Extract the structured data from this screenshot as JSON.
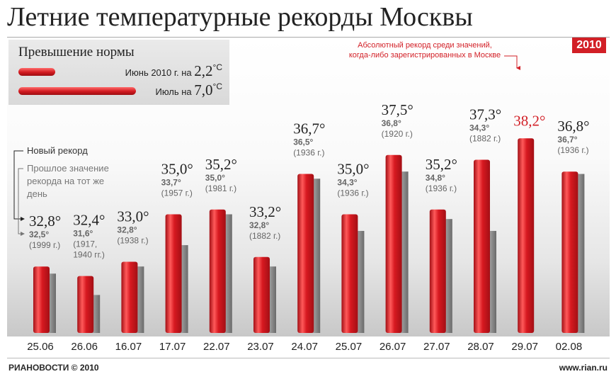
{
  "title": "Летние температурные рекорды Москвы",
  "year_badge": "2010",
  "legend": {
    "title": "Превышение нормы",
    "june_prefix": "Июнь 2010 г. на",
    "june_value": "2,2",
    "july_prefix": "Июль на",
    "july_value": "7,0",
    "unit": "°С"
  },
  "note": {
    "line1": "Абсолютный рекорд среди значений,",
    "line2": "когда-либо зарегистрированных в Москве"
  },
  "side_note": {
    "new_record": "Новый рекорд",
    "prev_line1": "Прошлое значение",
    "prev_line2": "рекорда на тот же",
    "prev_line3": "день"
  },
  "footer": {
    "agency": "РИАНОВОСТИ",
    "copyright": "© 2010",
    "site": "www.rian.ru"
  },
  "colors": {
    "accent": "#d21f26",
    "previous_bar": "#8a8a8a"
  },
  "chart_data": {
    "type": "bar",
    "categories": [
      "25.06",
      "26.06",
      "16.07",
      "17.07",
      "22.07",
      "23.07",
      "24.07",
      "25.07",
      "26.07",
      "27.07",
      "28.07",
      "29.07",
      "02.08"
    ],
    "series": [
      {
        "values": [
          32.8,
          32.4,
          33.0,
          35.0,
          35.2,
          33.2,
          36.7,
          35.0,
          37.5,
          35.2,
          37.3,
          38.2,
          36.8
        ]
      },
      {
        "values": [
          32.5,
          31.6,
          32.8,
          33.7,
          35.0,
          32.8,
          36.5,
          34.3,
          36.8,
          34.8,
          34.3,
          null,
          36.7
        ]
      }
    ],
    "new_record_labels": [
      "32,8°",
      "32,4°",
      "33,0°",
      "35,0°",
      "35,2°",
      "33,2°",
      "36,7°",
      "35,0°",
      "37,5°",
      "35,2°",
      "37,3°",
      "38,2°",
      "36,8°"
    ],
    "previous_record_labels": [
      "32,5°",
      "31,6°",
      "32,8°",
      "33,7°",
      "35,0°",
      "32,8°",
      "36,5°",
      "34,3°",
      "36,8°",
      "34,8°",
      "34,3°",
      "",
      "36,7°"
    ],
    "previous_record_years": [
      [
        "(1999 г.)"
      ],
      [
        "(1917,",
        "1940 гг.)"
      ],
      [
        "(1938 г.)"
      ],
      [
        "(1957 г.)"
      ],
      [
        "(1981 г.)"
      ],
      [
        "(1882 г.)"
      ],
      [
        "(1936 г.)"
      ],
      [
        "(1936 г.)"
      ],
      [
        "(1920 г.)"
      ],
      [
        "(1936 г.)"
      ],
      [
        "(1882 г.)"
      ],
      [],
      [
        "(1936 г.)"
      ]
    ],
    "absolute_record_index": 11,
    "ylim": [
      30,
      38.2
    ],
    "grid": false
  }
}
